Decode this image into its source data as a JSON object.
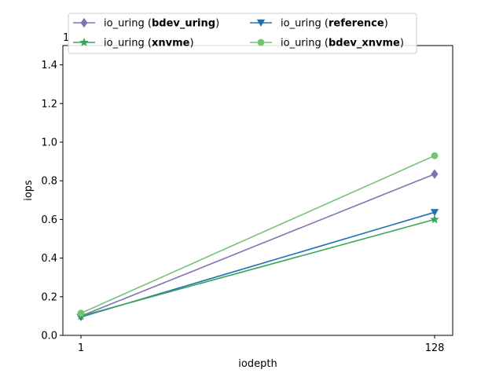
{
  "chart_data": {
    "type": "line",
    "x": [
      1,
      128
    ],
    "x_categories": [
      "1",
      "128"
    ],
    "xlabel": "iodepth",
    "ylabel": "iops",
    "ylim": [
      0.0,
      1.5
    ],
    "yticks": [
      "0.0",
      "0.2",
      "0.4",
      "0.6",
      "0.8",
      "1.0",
      "1.2",
      "1.4"
    ],
    "offset_text": "1",
    "grid": false,
    "legend_placement": "top-center",
    "series": [
      {
        "prefix": "io_uring (",
        "bold": "bdev_uring",
        "suffix": ")",
        "color": "#8073b5",
        "marker": "diamond",
        "values": [
          0.1,
          0.835
        ]
      },
      {
        "prefix": "io_uring (",
        "bold": "reference",
        "suffix": ")",
        "color": "#2070b4",
        "marker": "triangle-down",
        "values": [
          0.095,
          0.637
        ]
      },
      {
        "prefix": "io_uring (",
        "bold": "xnvme",
        "suffix": ")",
        "color": "#3ca55a",
        "marker": "star",
        "values": [
          0.1,
          0.6
        ]
      },
      {
        "prefix": "io_uring (",
        "bold": "bdev_xnvme",
        "suffix": ")",
        "color": "#74c476",
        "marker": "circle",
        "values": [
          0.115,
          0.93
        ]
      }
    ]
  }
}
